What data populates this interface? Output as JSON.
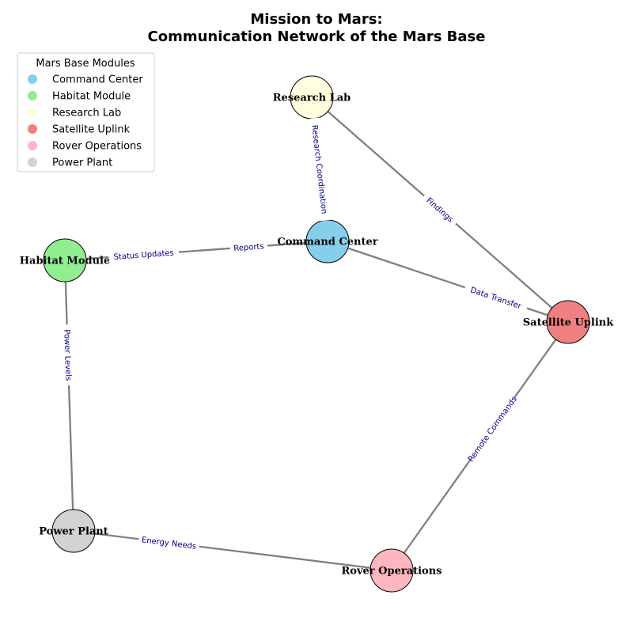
{
  "title": {
    "line1": "Mission to Mars:",
    "line2": "Communication Network of the Mars Base"
  },
  "legend": {
    "title": "Mars Base Modules",
    "items": [
      {
        "label": "Command Center",
        "color": "#87ceeb"
      },
      {
        "label": "Habitat Module",
        "color": "#90ee90"
      },
      {
        "label": "Research Lab",
        "color": "#ffffe0"
      },
      {
        "label": "Satellite Uplink",
        "color": "#f08080"
      },
      {
        "label": "Rover Operations",
        "color": "#ffb6c1"
      },
      {
        "label": "Power Plant",
        "color": "#d3d3d3"
      }
    ]
  },
  "nodes": [
    {
      "id": "command",
      "label": "Command Center",
      "color": "#87ceeb"
    },
    {
      "id": "habitat",
      "label": "Habitat Module",
      "color": "#90ee90"
    },
    {
      "id": "research",
      "label": "Research Lab",
      "color": "#ffffe0"
    },
    {
      "id": "satellite",
      "label": "Satellite Uplink",
      "color": "#f08080"
    },
    {
      "id": "rover",
      "label": "Rover Operations",
      "color": "#ffb6c1"
    },
    {
      "id": "power",
      "label": "Power Plant",
      "color": "#d3d3d3"
    }
  ],
  "edges": [
    {
      "from": "research",
      "to": "command",
      "label": "Research Coordination"
    },
    {
      "from": "research",
      "to": "satellite",
      "label": "Findings"
    },
    {
      "from": "habitat",
      "to": "command",
      "label": "Status Updates"
    },
    {
      "from": "command",
      "to": "habitat",
      "label": "Reports"
    },
    {
      "from": "command",
      "to": "satellite",
      "label": "Data Transfer"
    },
    {
      "from": "habitat",
      "to": "power",
      "label": "Power Levels"
    },
    {
      "from": "power",
      "to": "rover",
      "label": "Energy Needs"
    },
    {
      "from": "rover",
      "to": "satellite",
      "label": "Remote Commands"
    }
  ],
  "colors": {
    "edge": "#808080",
    "edge_label": "#00008b",
    "node_border": "#000000"
  }
}
